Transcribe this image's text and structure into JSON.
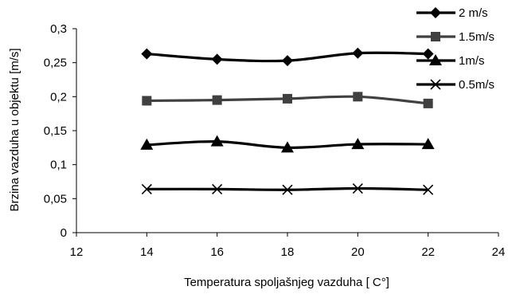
{
  "chart_data": {
    "type": "line",
    "xlabel": "Temperatura spoljašnjeg vazduha [ C°]",
    "ylabel": "Brzina vazduha u objektu [m/s]",
    "xlim": [
      12,
      24
    ],
    "ylim": [
      0,
      0.3
    ],
    "x_ticks": [
      "12",
      "14",
      "16",
      "18",
      "20",
      "22",
      "24"
    ],
    "y_ticks": [
      "0",
      "0,05",
      "0,1",
      "0,15",
      "0,2",
      "0,25",
      "0,3"
    ],
    "grid": false,
    "legend_position": "top-right",
    "series": [
      {
        "name": "2 m/s",
        "marker": "diamond",
        "color": "#000000",
        "x": [
          14,
          16,
          18,
          20,
          22
        ],
        "y": [
          0.263,
          0.255,
          0.253,
          0.264,
          0.263
        ]
      },
      {
        "name": "1.5m/s",
        "marker": "square",
        "color": "#404040",
        "x": [
          14,
          16,
          18,
          20,
          22
        ],
        "y": [
          0.194,
          0.195,
          0.197,
          0.2,
          0.19
        ]
      },
      {
        "name": "1m/s",
        "marker": "triangle",
        "color": "#000000",
        "x": [
          14,
          16,
          18,
          20,
          22
        ],
        "y": [
          0.129,
          0.134,
          0.125,
          0.13,
          0.13
        ]
      },
      {
        "name": "0.5m/s",
        "marker": "x",
        "color": "#000000",
        "x": [
          14,
          16,
          18,
          20,
          22
        ],
        "y": [
          0.064,
          0.064,
          0.063,
          0.065,
          0.063
        ]
      }
    ]
  }
}
